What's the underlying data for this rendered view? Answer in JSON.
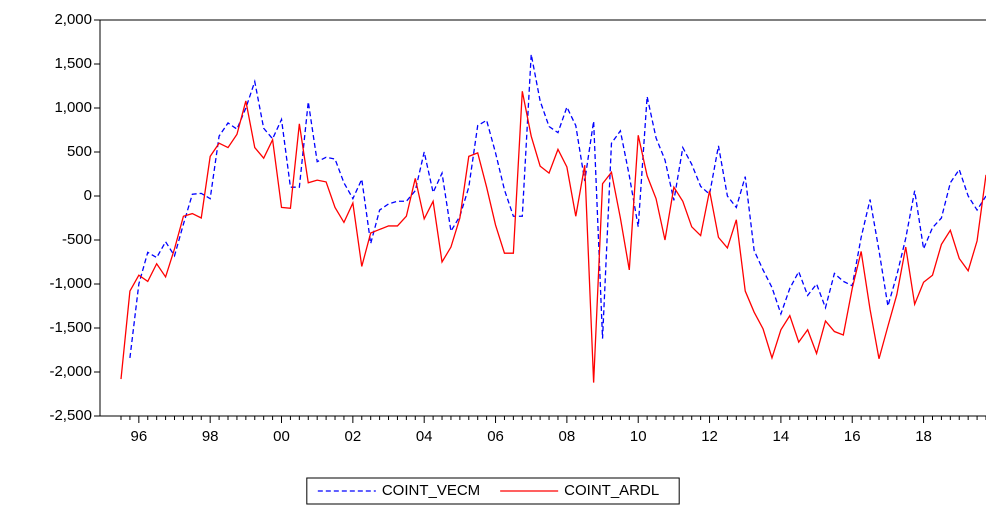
{
  "chart_data": {
    "type": "line",
    "categories": [
      null,
      null,
      "96",
      null,
      null,
      null,
      null,
      null,
      null,
      null,
      "98",
      null,
      null,
      null,
      null,
      null,
      null,
      null,
      "00",
      null,
      null,
      null,
      null,
      null,
      null,
      null,
      "02",
      null,
      null,
      null,
      null,
      null,
      null,
      null,
      "04",
      null,
      null,
      null,
      null,
      null,
      null,
      null,
      "06",
      null,
      null,
      null,
      null,
      null,
      null,
      null,
      "08",
      null,
      null,
      null,
      null,
      null,
      null,
      null,
      "10",
      null,
      null,
      null,
      null,
      null,
      null,
      null,
      "12",
      null,
      null,
      null,
      null,
      null,
      null,
      null,
      "14",
      null,
      null,
      null,
      null,
      null,
      null,
      null,
      "16",
      null,
      null,
      null,
      null,
      null,
      null,
      null,
      "18",
      null,
      null,
      null,
      null,
      null,
      null,
      null
    ],
    "series": [
      {
        "name": "COINT_VECM",
        "color": "#0000ff",
        "dashed": true,
        "values": [
          null,
          -1840,
          -1000,
          -640,
          -700,
          -520,
          -680,
          -320,
          20,
          30,
          -30,
          680,
          830,
          760,
          1000,
          1300,
          770,
          650,
          870,
          100,
          100,
          1070,
          390,
          440,
          420,
          150,
          -30,
          190,
          -540,
          -160,
          -90,
          -60,
          -60,
          60,
          500,
          40,
          260,
          -400,
          -230,
          100,
          800,
          860,
          490,
          70,
          -230,
          -230,
          1610,
          1080,
          790,
          720,
          1010,
          800,
          170,
          850,
          -1620,
          600,
          740,
          230,
          -350,
          1130,
          660,
          410,
          -50,
          550,
          360,
          110,
          20,
          570,
          0,
          -130,
          220,
          -620,
          -840,
          -1040,
          -1340,
          -1050,
          -860,
          -1130,
          -1000,
          -1270,
          -880,
          -970,
          -1020,
          -470,
          -40,
          -620,
          -1250,
          -900,
          -480,
          60,
          -600,
          -360,
          -250,
          150,
          300,
          0,
          -160,
          0
        ]
      },
      {
        "name": "COINT_ARDL",
        "color": "#ff0000",
        "dashed": false,
        "values": [
          -2080,
          -1080,
          -900,
          -970,
          -770,
          -920,
          -600,
          -230,
          -200,
          -250,
          450,
          600,
          550,
          700,
          1080,
          550,
          430,
          640,
          -130,
          -140,
          820,
          150,
          180,
          160,
          -130,
          -300,
          -80,
          -800,
          -420,
          -380,
          -340,
          -340,
          -230,
          200,
          -260,
          -60,
          -750,
          -580,
          -250,
          450,
          490,
          100,
          -330,
          -650,
          -650,
          1190,
          680,
          340,
          260,
          530,
          330,
          -230,
          350,
          -2120,
          140,
          270,
          -250,
          -840,
          690,
          230,
          -30,
          -500,
          100,
          -60,
          -350,
          -450,
          60,
          -470,
          -590,
          -270,
          -1080,
          -1320,
          -1510,
          -1840,
          -1520,
          -1360,
          -1660,
          -1520,
          -1790,
          -1420,
          -1540,
          -1580,
          -1050,
          -630,
          -1290,
          -1850,
          -1480,
          -1120,
          -580,
          -1230,
          -980,
          -900,
          -550,
          -390,
          -710,
          -850,
          -510,
          240
        ]
      }
    ],
    "ylim": [
      -2500,
      2000
    ],
    "yticks": [
      {
        "value": -2500,
        "label": "-2,500"
      },
      {
        "value": -2000,
        "label": "-2,000"
      },
      {
        "value": -1500,
        "label": "-1,500"
      },
      {
        "value": -1000,
        "label": "-1,000"
      },
      -500,
      0,
      500,
      {
        "value": 1000,
        "label": "1,000"
      },
      {
        "value": 1500,
        "label": "1,500"
      },
      {
        "value": 2000,
        "label": "2,000"
      }
    ],
    "grid": false,
    "legend": "bottom"
  }
}
